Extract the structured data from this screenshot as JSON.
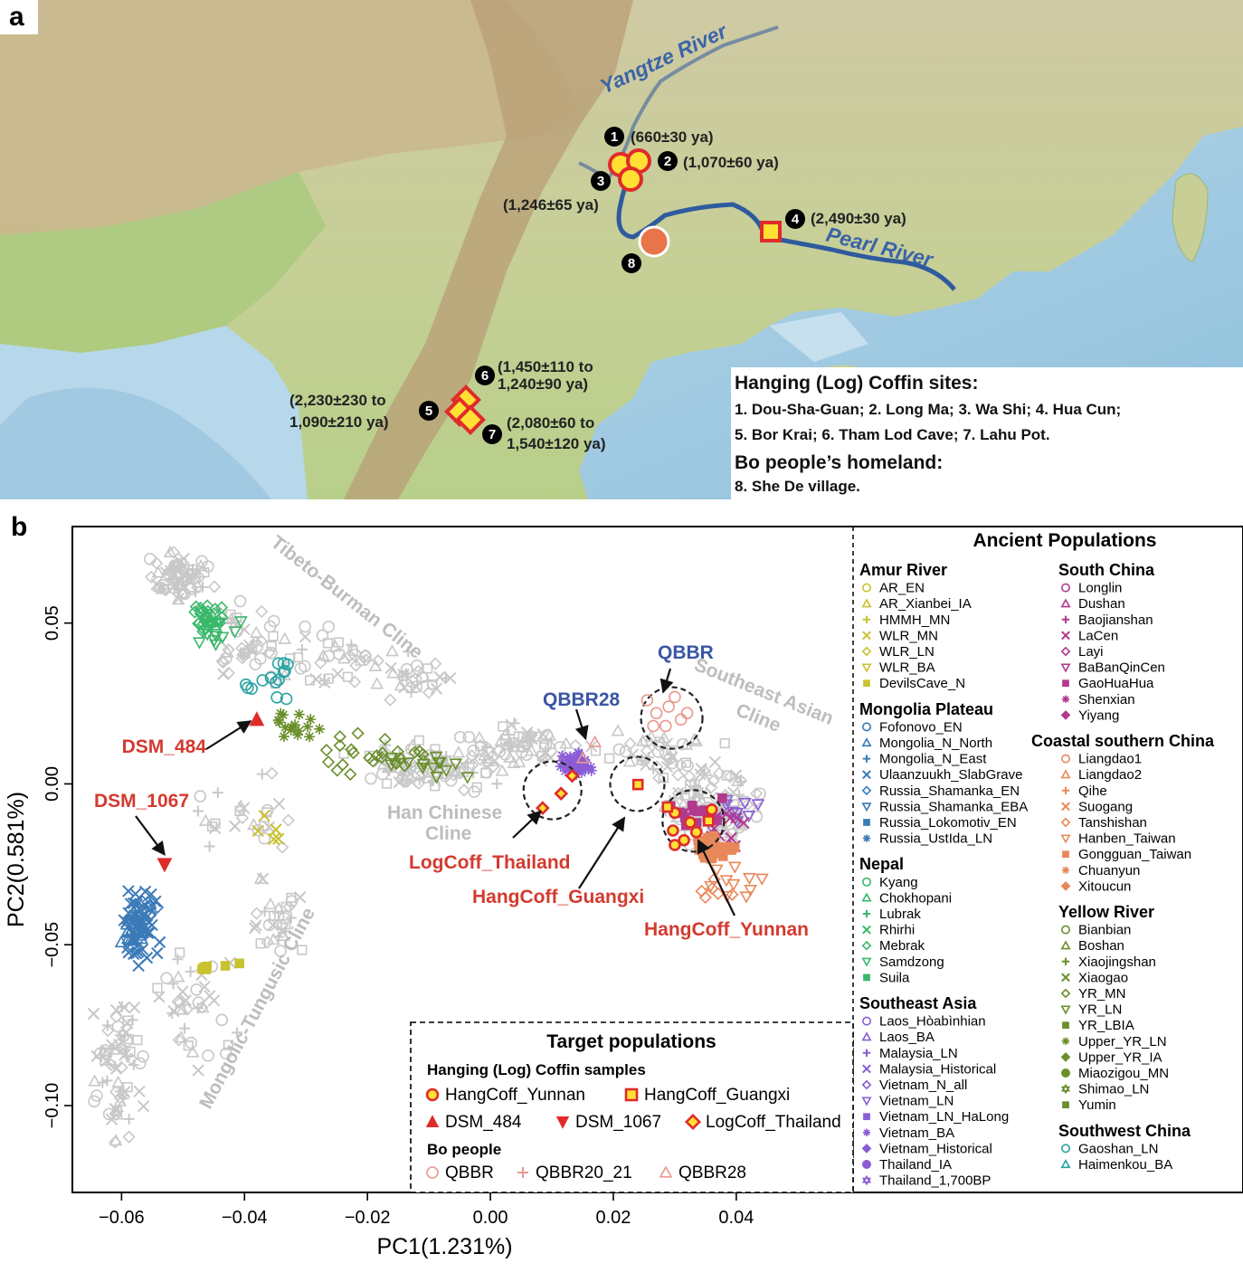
{
  "panel_a": {
    "letter": "a",
    "rivers": [
      {
        "name": "Yangtze River",
        "color": "#2f5a9e"
      },
      {
        "name": "Pearl River",
        "color": "#2f5a9e"
      }
    ],
    "sites": [
      {
        "num": "1",
        "date": "(660±30 ya)",
        "kind": "circle"
      },
      {
        "num": "2",
        "date": "(1,070±60 ya)",
        "kind": "circle"
      },
      {
        "num": "3",
        "date": "(1,246±65 ya)",
        "kind": "circle"
      },
      {
        "num": "4",
        "date": "(2,490±30 ya)",
        "kind": "square"
      },
      {
        "num": "5",
        "date_line1": "(2,230±230 to",
        "date_line2": "1,090±210 ya)",
        "kind": "diamond"
      },
      {
        "num": "6",
        "date_line1": "(1,450±110 to",
        "date_line2": "1,240±90 ya)",
        "kind": "diamond"
      },
      {
        "num": "7",
        "date_line1": "(2,080±60 to",
        "date_line2": "1,540±120 ya)",
        "kind": "diamond"
      },
      {
        "num": "8",
        "kind": "bo-homeland"
      }
    ],
    "legend": {
      "title1": "Hanging (Log) Coffin sites:",
      "line1": "1. Dou-Sha-Guan;  2. Long Ma;  3. Wa Shi;  4. Hua Cun;",
      "line2": "5. Bor Krai;  6. Tham Lod Cave;  7. Lahu Pot.",
      "title2": "Bo people’s homeland:",
      "line3": "8. She De village."
    },
    "colors": {
      "marker_fill": "#ffe033",
      "marker_edge": "#e02b2b",
      "homeland": "#e8744a"
    }
  },
  "panel_b": {
    "letter": "b",
    "chart_data": {
      "type": "scatter",
      "xlabel": "PC1(1.231%)",
      "ylabel": "PC2(0.581%)",
      "xlim": [
        -0.068,
        0.059
      ],
      "ylim": [
        -0.127,
        0.08
      ],
      "xticks": [
        "−0.06",
        "−0.04",
        "−0.02",
        "0.00",
        "0.02",
        "0.04"
      ],
      "xtick_values": [
        -0.06,
        -0.04,
        -0.02,
        0.0,
        0.02,
        0.04
      ],
      "yticks": [
        "0.05",
        "0.00",
        "−0.05",
        "−0.10"
      ],
      "ytick_values": [
        0.05,
        0.0,
        -0.05,
        -0.1
      ],
      "clines": [
        "Tibeto-Burman Cline",
        "Southeast Asian",
        "Cline",
        "Han Chinese",
        "Cline",
        "Mongolic-Tungusic Cline"
      ],
      "callouts": [
        {
          "label": "QBBR",
          "color": "#3a55a4",
          "point": [
            0.0281,
            0.0215
          ]
        },
        {
          "label": "QBBR28",
          "color": "#3a55a4",
          "point": [
            0.0153,
            0.0
          ]
        },
        {
          "label": "DSM_484",
          "color": "#d43a2f",
          "point": [
            -0.038,
            0.02
          ]
        },
        {
          "label": "DSM_1067",
          "color": "#d43a2f",
          "point": [
            -0.053,
            -0.025
          ]
        },
        {
          "label": "LogCoff_Thailand",
          "color": "#d43a2f",
          "point": [
            0.01,
            -0.007
          ]
        },
        {
          "label": "HangCoff_Guangxi",
          "color": "#d43a2f",
          "point": [
            0.024,
            -0.0002
          ]
        },
        {
          "label": "HangCoff_Yunnan",
          "color": "#d43a2f",
          "point": [
            0.0325,
            -0.012
          ]
        }
      ],
      "target_points": {
        "HangCoff_Yunnan": [
          [
            0.03,
            -0.009
          ],
          [
            0.0325,
            -0.012
          ],
          [
            0.036,
            -0.008
          ],
          [
            0.03,
            -0.019
          ],
          [
            0.0335,
            -0.015
          ],
          [
            0.0297,
            -0.0145
          ],
          [
            0.0315,
            -0.0175
          ]
        ],
        "HangCoff_Guangxi": [
          [
            0.024,
            -0.0002
          ],
          [
            0.0288,
            -0.0072
          ],
          [
            0.0355,
            -0.0115
          ]
        ],
        "LogCoff_Thailand": [
          [
            0.0085,
            -0.0075
          ],
          [
            0.0115,
            -0.003
          ],
          [
            0.0133,
            0.0025
          ]
        ],
        "DSM_484": [
          [
            -0.038,
            0.02
          ]
        ],
        "DSM_1067": [
          [
            -0.053,
            -0.025
          ]
        ],
        "QBBR": [
          [
            0.0255,
            0.026
          ],
          [
            0.027,
            0.022
          ],
          [
            0.029,
            0.024
          ],
          [
            0.031,
            0.02
          ],
          [
            0.0265,
            0.018
          ],
          [
            0.03,
            0.027
          ],
          [
            0.032,
            0.022
          ],
          [
            0.0285,
            0.018
          ]
        ],
        "QBBR28": [
          [
            0.017,
            0.013
          ],
          [
            0.015,
            0.008
          ]
        ]
      },
      "legend_title": "Ancient Populations",
      "legend_groups": [
        {
          "title": "Amur River",
          "items": [
            {
              "name": "AR_EN",
              "color": "#c9c230",
              "shape": "o"
            },
            {
              "name": "AR_Xianbei_IA",
              "color": "#c9c230",
              "shape": "^"
            },
            {
              "name": "HMMH_MN",
              "color": "#c9c230",
              "shape": "+"
            },
            {
              "name": "WLR_MN",
              "color": "#c9c230",
              "shape": "x"
            },
            {
              "name": "WLR_LN",
              "color": "#c9c230",
              "shape": "d"
            },
            {
              "name": "WLR_BA",
              "color": "#c9c230",
              "shape": "v"
            },
            {
              "name": "DevilsCave_N",
              "color": "#c9c230",
              "shape": "s"
            }
          ]
        },
        {
          "title": "Mongolia Plateau",
          "items": [
            {
              "name": "Fofonovo_EN",
              "color": "#3b7ab8",
              "shape": "o"
            },
            {
              "name": "Mongolia_N_North",
              "color": "#3b7ab8",
              "shape": "^"
            },
            {
              "name": "Mongolia_N_East",
              "color": "#3b7ab8",
              "shape": "+"
            },
            {
              "name": "Ulaanzuukh_SlabGrave",
              "color": "#3b7ab8",
              "shape": "x"
            },
            {
              "name": "Russia_Shamanka_EN",
              "color": "#3b7ab8",
              "shape": "d"
            },
            {
              "name": "Russia_Shamanka_EBA",
              "color": "#3b7ab8",
              "shape": "v"
            },
            {
              "name": "Russia_Lokomotiv_EN",
              "color": "#3b7ab8",
              "shape": "s"
            },
            {
              "name": "Russia_UstIda_LN",
              "color": "#3b7ab8",
              "shape": "*"
            }
          ]
        },
        {
          "title": "Nepal",
          "items": [
            {
              "name": "Kyang",
              "color": "#39b86a",
              "shape": "o"
            },
            {
              "name": "Chokhopani",
              "color": "#39b86a",
              "shape": "^"
            },
            {
              "name": "Lubrak",
              "color": "#39b86a",
              "shape": "+"
            },
            {
              "name": "Rhirhi",
              "color": "#39b86a",
              "shape": "x"
            },
            {
              "name": "Mebrak",
              "color": "#39b86a",
              "shape": "d"
            },
            {
              "name": "Samdzong",
              "color": "#39b86a",
              "shape": "v"
            },
            {
              "name": "Suila",
              "color": "#39b86a",
              "shape": "s"
            }
          ]
        },
        {
          "title": "Southeast Asia",
          "items": [
            {
              "name": "Laos_Hòabìnhian",
              "color": "#8a5cd6",
              "shape": "o"
            },
            {
              "name": "Laos_BA",
              "color": "#8a5cd6",
              "shape": "^"
            },
            {
              "name": "Malaysia_LN",
              "color": "#8a5cd6",
              "shape": "+"
            },
            {
              "name": "Malaysia_Historical",
              "color": "#8a5cd6",
              "shape": "x"
            },
            {
              "name": "Vietnam_N_all",
              "color": "#8a5cd6",
              "shape": "d"
            },
            {
              "name": "Vietnam_LN",
              "color": "#8a5cd6",
              "shape": "v"
            },
            {
              "name": "Vietnam_LN_HaLong",
              "color": "#8a5cd6",
              "shape": "s"
            },
            {
              "name": "Vietnam_BA",
              "color": "#8a5cd6",
              "shape": "*"
            },
            {
              "name": "Vietnam_Historical",
              "color": "#8a5cd6",
              "shape": "D"
            },
            {
              "name": "Thailand_IA",
              "color": "#8a5cd6",
              "shape": "O"
            },
            {
              "name": "Thailand_1,700BP",
              "color": "#8a5cd6",
              "shape": "hex"
            }
          ]
        },
        {
          "title": "South China",
          "items": [
            {
              "name": "Longlin",
              "color": "#b23a8e",
              "shape": "o"
            },
            {
              "name": "Dushan",
              "color": "#b23a8e",
              "shape": "^"
            },
            {
              "name": "Baojianshan",
              "color": "#b23a8e",
              "shape": "+"
            },
            {
              "name": "LaCen",
              "color": "#b23a8e",
              "shape": "x"
            },
            {
              "name": "Layi",
              "color": "#b23a8e",
              "shape": "d"
            },
            {
              "name": "BaBanQinCen",
              "color": "#b23a8e",
              "shape": "v"
            },
            {
              "name": "GaoHuaHua",
              "color": "#b23a8e",
              "shape": "s"
            },
            {
              "name": "Shenxian",
              "color": "#b23a8e",
              "shape": "*"
            },
            {
              "name": "Yiyang",
              "color": "#b23a8e",
              "shape": "D"
            }
          ]
        },
        {
          "title": "Coastal southern China",
          "items": [
            {
              "name": "Liangdao1",
              "color": "#e8885a",
              "shape": "o"
            },
            {
              "name": "Liangdao2",
              "color": "#e8885a",
              "shape": "^"
            },
            {
              "name": "Qihe",
              "color": "#e8885a",
              "shape": "+"
            },
            {
              "name": "Suogang",
              "color": "#e8885a",
              "shape": "x"
            },
            {
              "name": "Tanshishan",
              "color": "#e8885a",
              "shape": "d"
            },
            {
              "name": "Hanben_Taiwan",
              "color": "#e8885a",
              "shape": "v"
            },
            {
              "name": "Gongguan_Taiwan",
              "color": "#e8885a",
              "shape": "s"
            },
            {
              "name": "Chuanyun",
              "color": "#e8885a",
              "shape": "*"
            },
            {
              "name": "Xitoucun",
              "color": "#e8885a",
              "shape": "D"
            }
          ]
        },
        {
          "title": "Yellow River",
          "items": [
            {
              "name": "Bianbian",
              "color": "#6a8f2b",
              "shape": "o"
            },
            {
              "name": "Boshan",
              "color": "#6a8f2b",
              "shape": "^"
            },
            {
              "name": "Xiaojingshan",
              "color": "#6a8f2b",
              "shape": "+"
            },
            {
              "name": "Xiaogao",
              "color": "#6a8f2b",
              "shape": "x"
            },
            {
              "name": "YR_MN",
              "color": "#6a8f2b",
              "shape": "d"
            },
            {
              "name": "YR_LN",
              "color": "#6a8f2b",
              "shape": "v"
            },
            {
              "name": "YR_LBIA",
              "color": "#6a8f2b",
              "shape": "s"
            },
            {
              "name": "Upper_YR_LN",
              "color": "#6a8f2b",
              "shape": "*"
            },
            {
              "name": "Upper_YR_IA",
              "color": "#6a8f2b",
              "shape": "D"
            },
            {
              "name": "Miaozigou_MN",
              "color": "#6a8f2b",
              "shape": "O"
            },
            {
              "name": "Shimao_LN",
              "color": "#6a8f2b",
              "shape": "hex"
            },
            {
              "name": "Yumin",
              "color": "#6a8f2b",
              "shape": "s"
            }
          ]
        },
        {
          "title": "Southwest China",
          "items": [
            {
              "name": "Gaoshan_LN",
              "color": "#2aa3a3",
              "shape": "o"
            },
            {
              "name": "Haimenkou_BA",
              "color": "#2aa3a3",
              "shape": "^"
            }
          ]
        }
      ],
      "target_legend": {
        "title": "Target populations",
        "sub1": "Hanging (Log) Coffin samples",
        "items1": [
          {
            "name": "HangCoff_Yunnan",
            "shape": "yun"
          },
          {
            "name": "HangCoff_Guangxi",
            "shape": "gx"
          },
          {
            "name": "DSM_484",
            "shape": "tri-up"
          },
          {
            "name": "DSM_1067",
            "shape": "tri-down"
          },
          {
            "name": "LogCoff_Thailand",
            "shape": "th"
          }
        ],
        "sub2": "Bo people",
        "items2": [
          {
            "name": "QBBR",
            "shape": "qo"
          },
          {
            "name": "QBBR20_21",
            "shape": "q+"
          },
          {
            "name": "QBBR28",
            "shape": "q^"
          }
        ]
      }
    }
  }
}
